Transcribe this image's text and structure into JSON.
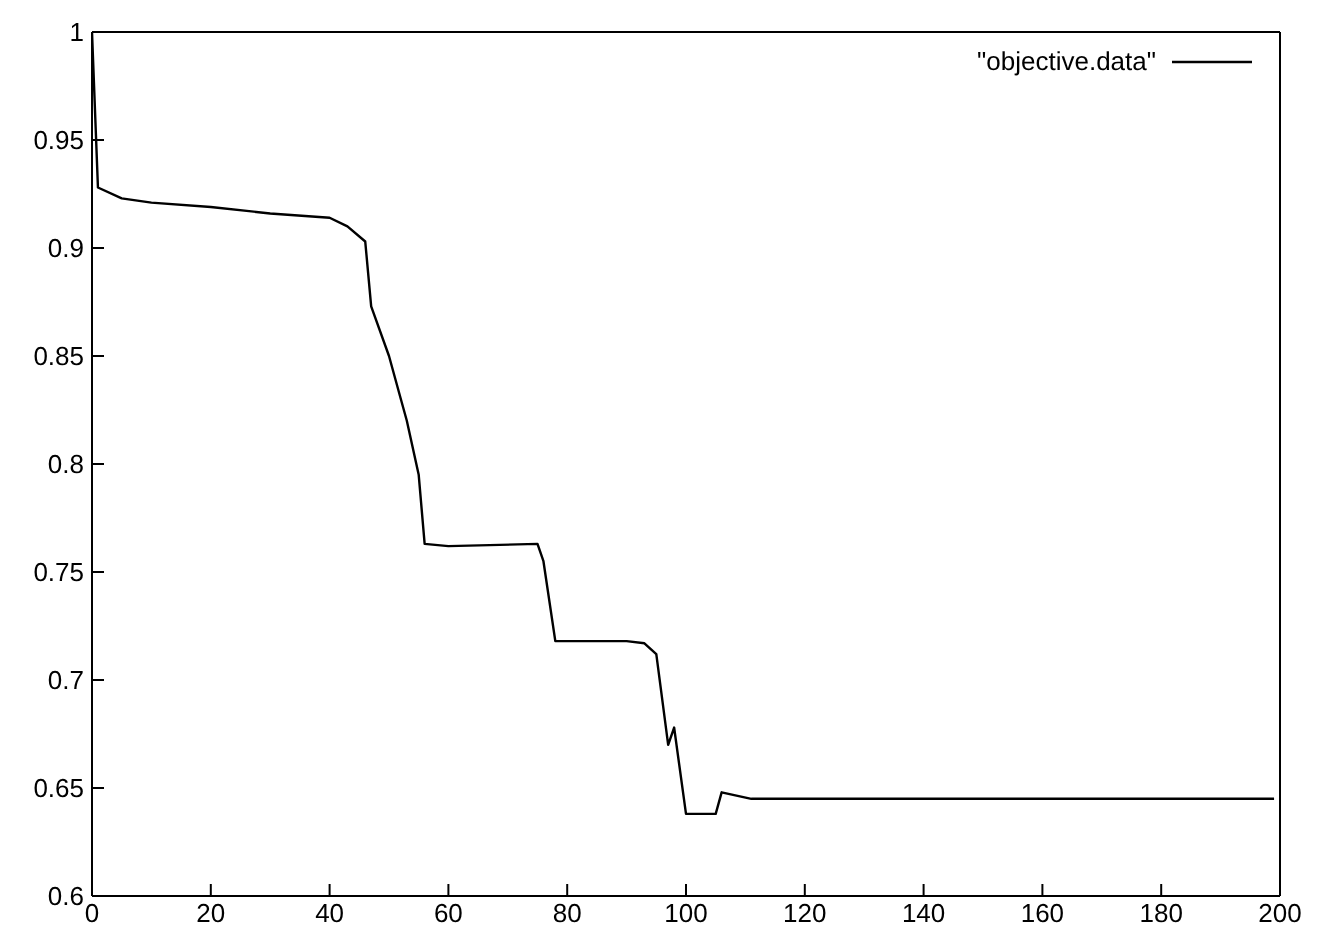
{
  "chart_data": {
    "type": "line",
    "x": [
      0,
      1,
      5,
      10,
      20,
      30,
      40,
      43,
      46,
      47,
      50,
      52,
      53,
      55,
      56,
      60,
      75,
      76,
      78,
      90,
      93,
      95,
      97,
      98,
      100,
      105,
      106,
      111,
      130,
      199
    ],
    "series": [
      {
        "name": "\"objective.data\"",
        "color": "#000000",
        "values": [
          1.0,
          0.928,
          0.923,
          0.921,
          0.919,
          0.916,
          0.914,
          0.91,
          0.903,
          0.873,
          0.85,
          0.83,
          0.82,
          0.795,
          0.763,
          0.762,
          0.763,
          0.755,
          0.718,
          0.718,
          0.717,
          0.712,
          0.67,
          0.678,
          0.638,
          0.638,
          0.648,
          0.645,
          0.645,
          0.645
        ]
      }
    ],
    "xlim": [
      0,
      200
    ],
    "xticks": [
      0,
      20,
      40,
      60,
      80,
      100,
      120,
      140,
      160,
      180,
      200
    ],
    "ylim": [
      0.6,
      1
    ],
    "yticks": [
      0.6,
      0.65,
      0.7,
      0.75,
      0.8,
      0.85,
      0.9,
      0.95,
      1
    ],
    "grid": false,
    "legend": "top right",
    "marker": "none",
    "line_style": "solid"
  }
}
